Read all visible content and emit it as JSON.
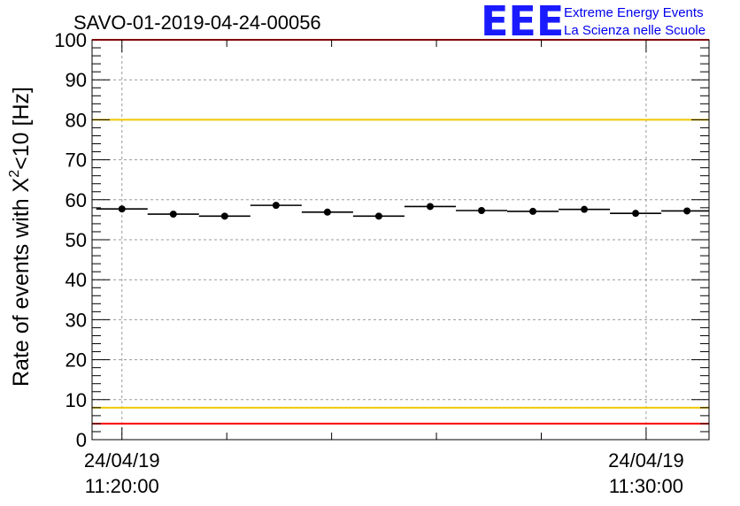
{
  "chart_data": {
    "type": "scatter",
    "title": "SAVO-01-2019-04-24-00056",
    "ylabel_prefix": "Rate of events with X",
    "ylabel_sup": "2",
    "ylabel_suffix": "<10 [Hz]",
    "xlabel": "",
    "ylim": [
      0,
      100
    ],
    "yticks": [
      "0",
      "10",
      "20",
      "30",
      "40",
      "50",
      "60",
      "70",
      "80",
      "90",
      "100"
    ],
    "xlim_minutes": [
      -0.57,
      11.2
    ],
    "xtick_labels": [
      {
        "minute": 0,
        "date": "24/04/19",
        "time": "11:20:00"
      },
      {
        "minute": 10,
        "date": "24/04/19",
        "time": "11:30:00"
      }
    ],
    "minor_xticks_minutes": [
      2,
      4,
      6,
      8
    ],
    "bin_width_minutes": 0.98,
    "points": [
      {
        "x": 0.0,
        "y": 57.7
      },
      {
        "x": 0.98,
        "y": 56.4
      },
      {
        "x": 1.96,
        "y": 55.9
      },
      {
        "x": 2.94,
        "y": 58.6
      },
      {
        "x": 3.92,
        "y": 56.9
      },
      {
        "x": 4.9,
        "y": 55.9
      },
      {
        "x": 5.88,
        "y": 58.3
      },
      {
        "x": 6.86,
        "y": 57.3
      },
      {
        "x": 7.84,
        "y": 57.1
      },
      {
        "x": 8.82,
        "y": 57.6
      },
      {
        "x": 9.8,
        "y": 56.6
      },
      {
        "x": 10.78,
        "y": 57.2
      }
    ],
    "reference_lines": [
      {
        "y": 100,
        "color": "#ff0000"
      },
      {
        "y": 80,
        "color": "#f0c800"
      },
      {
        "y": 8,
        "color": "#f0c800"
      },
      {
        "y": 4,
        "color": "#ff0000"
      }
    ]
  },
  "logo": {
    "text": "EEE",
    "line1": "Extreme Energy Events",
    "line2": "La Scienza nelle Scuole",
    "color": "#1a1aff"
  }
}
